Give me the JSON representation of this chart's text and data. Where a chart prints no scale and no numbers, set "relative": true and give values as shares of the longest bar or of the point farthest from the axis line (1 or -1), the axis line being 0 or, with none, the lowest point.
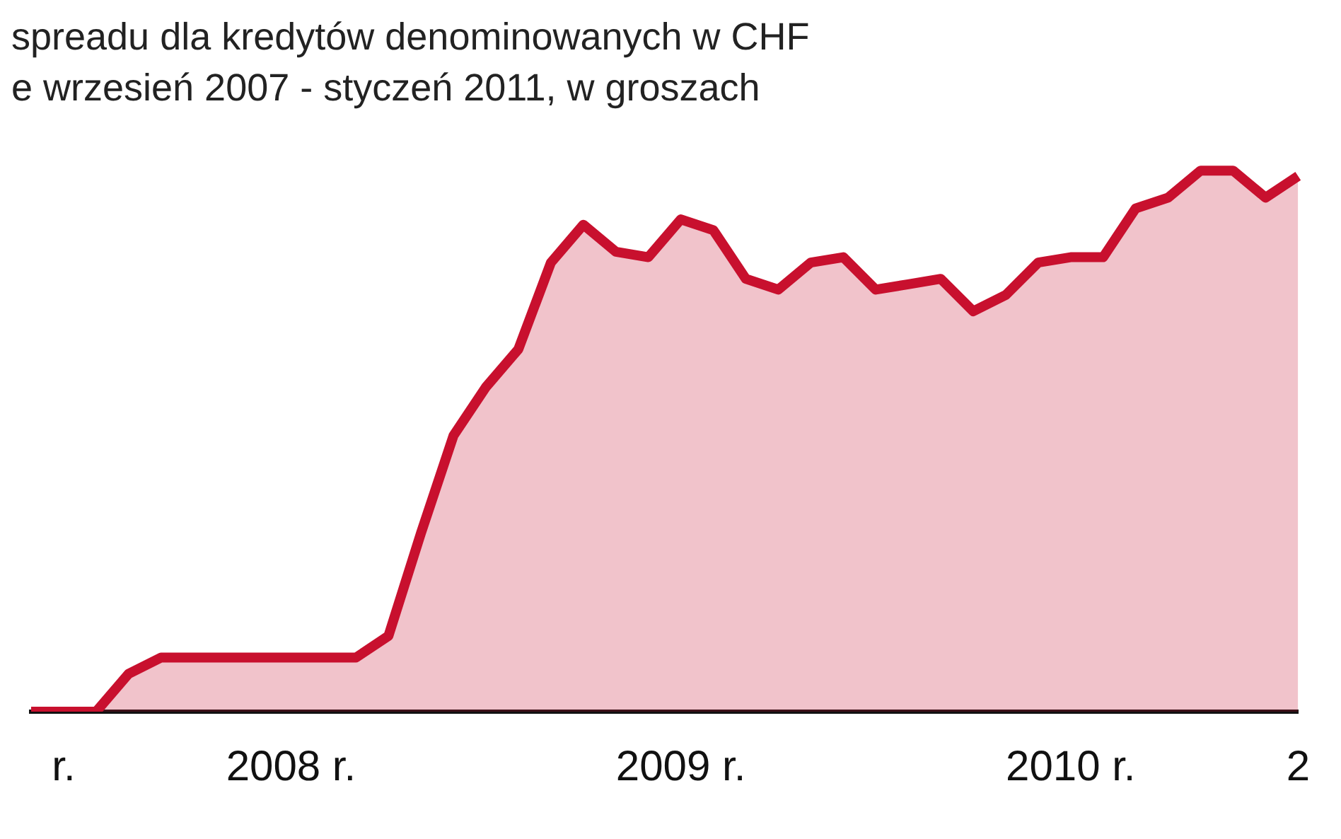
{
  "chart_data": {
    "type": "area",
    "title": "spreadu dla kredytów denominowanych w CHF",
    "subtitle": "e wrzesień 2007 - styczeń 2011, w groszach",
    "relative": true,
    "grid": false,
    "legend": false,
    "marker": "none",
    "categories": [
      null,
      "r.",
      null,
      null,
      null,
      null,
      null,
      null,
      "2008 r.",
      null,
      null,
      null,
      null,
      null,
      null,
      null,
      null,
      null,
      null,
      null,
      "2009 r.",
      null,
      null,
      null,
      null,
      null,
      null,
      null,
      null,
      null,
      null,
      null,
      "2010 r.",
      null,
      null,
      null,
      null,
      null,
      null,
      "2"
    ],
    "series": [
      {
        "color": "#c8102e",
        "values": [
          0,
          0,
          0,
          0.07,
          0.1,
          0.1,
          0.1,
          0.1,
          0.1,
          0.1,
          0.1,
          0.14,
          0.33,
          0.51,
          0.6,
          0.67,
          0.83,
          0.9,
          0.85,
          0.84,
          0.91,
          0.89,
          0.8,
          0.78,
          0.83,
          0.84,
          0.78,
          0.79,
          0.8,
          0.74,
          0.77,
          0.83,
          0.84,
          0.84,
          0.93,
          0.95,
          1,
          1,
          0.95,
          0.99
        ]
      }
    ]
  }
}
